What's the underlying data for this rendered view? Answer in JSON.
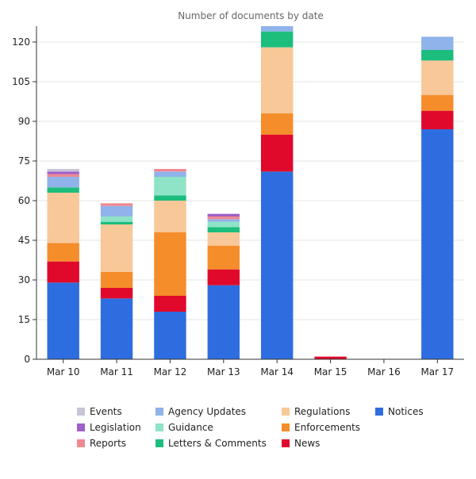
{
  "chart_data": {
    "type": "bar",
    "stacked": true,
    "title": "Number of documents by date",
    "xlabel": "",
    "ylabel": "",
    "categories": [
      "Mar 10",
      "Mar 11",
      "Mar 12",
      "Mar 13",
      "Mar 14",
      "Mar 15",
      "Mar 16",
      "Mar 17"
    ],
    "ylim": [
      0,
      126
    ],
    "yticks": [
      0,
      15,
      30,
      45,
      60,
      75,
      90,
      105,
      120
    ],
    "grid": true,
    "legend_position": "bottom",
    "series": [
      {
        "name": "Notices",
        "color": "#2e6ddf",
        "values": [
          29,
          23,
          18,
          28,
          71,
          0,
          0,
          87
        ]
      },
      {
        "name": "News",
        "color": "#e0092b",
        "values": [
          8,
          4,
          6,
          6,
          14,
          1,
          0,
          7
        ]
      },
      {
        "name": "Enforcements",
        "color": "#f58d2a",
        "values": [
          7,
          6,
          24,
          9,
          8,
          0,
          0,
          6
        ]
      },
      {
        "name": "Regulations",
        "color": "#f8c899",
        "values": [
          19,
          18,
          12,
          5,
          25,
          0,
          0,
          13
        ]
      },
      {
        "name": "Letters & Comments",
        "color": "#1dbd7e",
        "values": [
          2,
          1,
          2,
          2,
          6,
          0,
          0,
          4
        ]
      },
      {
        "name": "Guidance",
        "color": "#8fe3c7",
        "values": [
          0,
          2,
          7,
          2,
          0,
          0,
          0,
          0
        ]
      },
      {
        "name": "Agency Updates",
        "color": "#8fb3ea",
        "values": [
          4,
          4,
          2,
          1,
          2,
          0,
          0,
          5
        ]
      },
      {
        "name": "Reports",
        "color": "#f08891",
        "values": [
          1,
          1,
          1,
          1,
          0,
          0,
          0,
          0
        ]
      },
      {
        "name": "Legislation",
        "color": "#9f5fc7",
        "values": [
          1,
          0,
          0,
          1,
          0,
          0,
          0,
          0
        ]
      },
      {
        "name": "Events",
        "color": "#c9c3d6",
        "values": [
          1,
          0,
          0,
          0,
          0,
          0,
          0,
          0
        ]
      }
    ],
    "legend": {
      "order": [
        "Events",
        "Legislation",
        "Reports",
        "Agency Updates",
        "Guidance",
        "Letters & Comments",
        "Regulations",
        "Enforcements",
        "News",
        "Notices"
      ]
    }
  }
}
